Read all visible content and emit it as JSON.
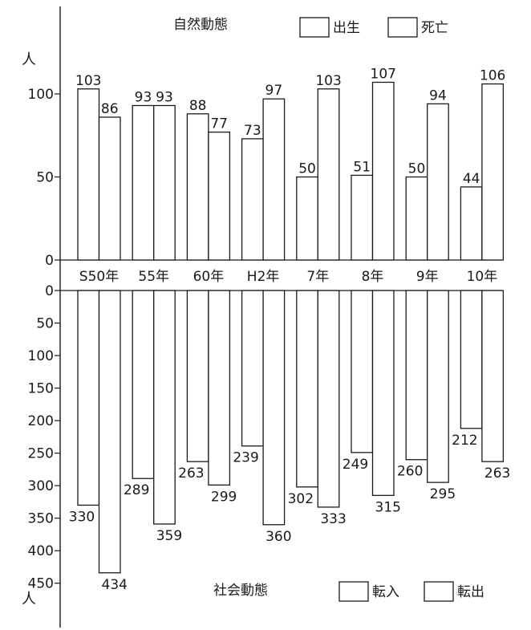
{
  "chart_data": [
    {
      "type": "bar",
      "title": "自然動態",
      "unit": "人",
      "categories": [
        "S50年",
        "55年",
        "60年",
        "H2年",
        "7年",
        "8年",
        "9年",
        "10年"
      ],
      "series": [
        {
          "name": "出生",
          "values": [
            103,
            93,
            88,
            73,
            50,
            51,
            50,
            44
          ]
        },
        {
          "name": "死亡",
          "values": [
            86,
            93,
            77,
            97,
            103,
            107,
            94,
            106
          ]
        }
      ],
      "yticks": [
        0,
        50,
        100
      ],
      "ylim": [
        0,
        100
      ],
      "grid": false,
      "legend_position": "top-right"
    },
    {
      "type": "bar",
      "title": "社会動態",
      "unit": "人",
      "categories": [
        "S50年",
        "55年",
        "60年",
        "H2年",
        "7年",
        "8年",
        "9年",
        "10年"
      ],
      "series": [
        {
          "name": "転入",
          "values": [
            330,
            289,
            263,
            239,
            302,
            249,
            260,
            212
          ]
        },
        {
          "name": "転出",
          "values": [
            434,
            359,
            299,
            360,
            333,
            315,
            295,
            263
          ]
        }
      ],
      "yticks": [
        0,
        50,
        100,
        150,
        200,
        250,
        300,
        350,
        400,
        450
      ],
      "ylim": [
        0,
        450
      ],
      "direction": "downward",
      "grid": false,
      "legend_position": "bottom-right"
    }
  ]
}
